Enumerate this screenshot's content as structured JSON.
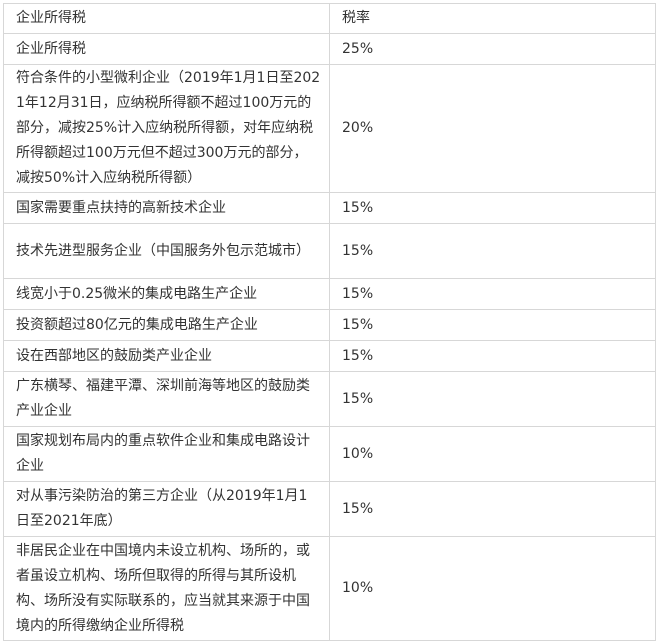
{
  "table": {
    "headers": [
      "企业所得税",
      "税率"
    ],
    "rows": [
      {
        "name": "企业所得税",
        "rate": "25%"
      },
      {
        "name": "符合条件的小型微利企业（2019年1月1日至2021年12月31日，应纳税所得额不超过100万元的部分，减按25%计入应纳税所得额，对年应纳税所得额超过100万元但不超过300万元的部分，减按50%计入应纳税所得额）",
        "rate": "20%"
      },
      {
        "name": "国家需要重点扶持的高新技术企业",
        "rate": "15%"
      },
      {
        "name": "技术先进型服务企业（中国服务外包示范城市）",
        "rate": "15%"
      },
      {
        "name": "线宽小于0.25微米的集成电路生产企业",
        "rate": "15%"
      },
      {
        "name": "投资额超过80亿元的集成电路生产企业",
        "rate": "15%"
      },
      {
        "name": "设在西部地区的鼓励类产业企业",
        "rate": "15%"
      },
      {
        "name": "广东横琴、福建平潭、深圳前海等地区的鼓励类产业企业",
        "rate": "15%"
      },
      {
        "name": "国家规划布局内的重点软件企业和集成电路设计企业",
        "rate": "10%"
      },
      {
        "name": "对从事污染防治的第三方企业（从2019年1月1日至2021年底）",
        "rate": "15%"
      },
      {
        "name": "非居民企业在中国境内未设立机构、场所的，或者虽设立机构、场所但取得的所得与其所设机构、场所没有实际联系的，应当就其来源于中国境内的所得缴纳企业所得税",
        "rate": "10%"
      }
    ]
  }
}
